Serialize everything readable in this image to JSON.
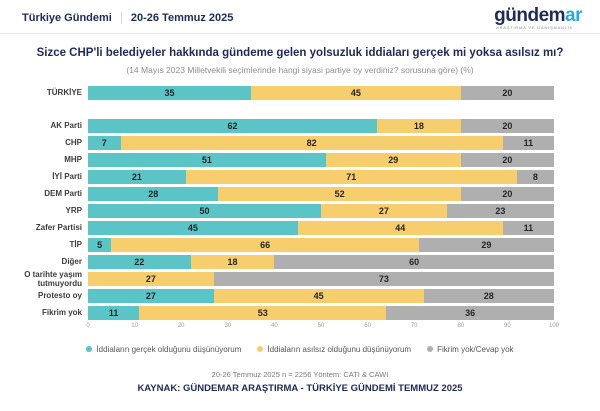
{
  "header": {
    "brand": "Türkiye Gündemi",
    "date_range": "20-26 Temmuz 2025",
    "logo": {
      "main": "gündem",
      "accent": "ar",
      "tagline": "ARAŞTIRMA VE DANIŞMANLIK"
    }
  },
  "colors": {
    "navy": "#1E2A57",
    "teal": "#5BC4C6",
    "yellow": "#F6CE6E",
    "gray": "#AFAFAF",
    "logo_accent": "#2AA9E0"
  },
  "chart_data": {
    "type": "bar",
    "orientation": "horizontal-stacked",
    "title": "Sizce CHP'li belediyeler hakkında gündeme gelen yolsuzluk iddiaları gerçek mi yoksa asılsız mı?",
    "subtitle": "(14 Mayıs 2023 Milletvekili seçimlerinde hangi siyasi partiye oy verdiniz? sorusuna göre) (%)",
    "categories": [
      "TÜRKİYE",
      "AK Parti",
      "CHP",
      "MHP",
      "İYİ Parti",
      "DEM Parti",
      "YRP",
      "Zafer Partisi",
      "TİP",
      "Diğer",
      "O tarihte yaşım tutmuyordu",
      "Protesto oy",
      "Fikrim yok"
    ],
    "series": [
      {
        "name": "İddiaların gerçek olduğunu düşünüyorum",
        "color": "#5BC4C6",
        "values": [
          35,
          62,
          7,
          51,
          21,
          28,
          50,
          45,
          5,
          22,
          0,
          27,
          11
        ]
      },
      {
        "name": "İddiaların asılsız olduğunu düşünüyorum",
        "color": "#F6CE6E",
        "values": [
          45,
          18,
          82,
          29,
          71,
          52,
          27,
          44,
          66,
          18,
          27,
          45,
          53
        ]
      },
      {
        "name": "Fikrim yok/Cevap yok",
        "color": "#AFAFAF",
        "values": [
          20,
          20,
          11,
          20,
          8,
          20,
          23,
          11,
          29,
          60,
          73,
          28,
          36
        ]
      }
    ],
    "x_axis_ticks": [
      0,
      10,
      20,
      30,
      40,
      50,
      60,
      70,
      80,
      90,
      100
    ],
    "xlim": [
      0,
      100
    ],
    "grid": false,
    "legend_position": "bottom"
  },
  "footer": {
    "methodology": "20-26 Temmuz 2025 n = 2256 Yöntem: CATI & CAWI",
    "source": "KAYNAK: GÜNDEMAR ARAŞTIRMA - TÜRKİYE GÜNDEMİ TEMMUZ 2025"
  }
}
